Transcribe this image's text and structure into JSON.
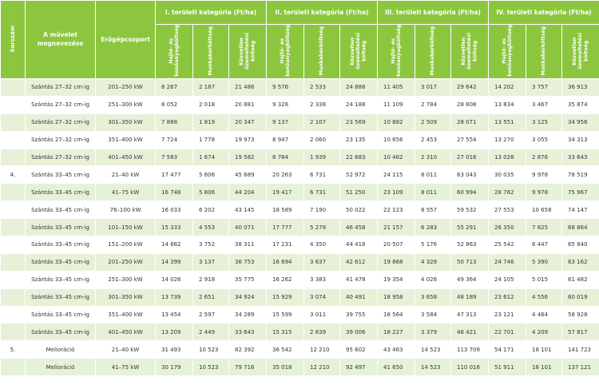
{
  "header": {
    "sorszam": "Sorszám",
    "muvelet": "A művelet megnevezése",
    "erogep": "Erőgépcsoport",
    "categories": [
      "I. területi kategória (Ft/ha)",
      "II. területi kategória (Ft/ha)",
      "III. területi kategória (Ft/ha)",
      "IV. területi kategória (Ft/ha)"
    ],
    "subcols": [
      "Hajtó- és\nkenőanyagköltség",
      "Munkabérköltség",
      "Közvetlen\nüzemeltetési\nköltség"
    ]
  },
  "rows": [
    {
      "sorszam": "",
      "muvelet": "Szántás 27–32 cm-ig",
      "erogep": "201–250 kW",
      "values": [
        "8 267",
        "2 187",
        "21 486",
        "9 576",
        "2 533",
        "24 888",
        "11 405",
        "3 017",
        "29 642",
        "14 202",
        "3 757",
        "36 913"
      ]
    },
    {
      "sorszam": "",
      "muvelet": "Szántás 27–32 cm-ig",
      "erogep": "251–300 kW",
      "values": [
        "8 052",
        "2 018",
        "20 881",
        "9 328",
        "2 338",
        "24 188",
        "11 109",
        "2 784",
        "28 808",
        "13 834",
        "3 467",
        "35 874"
      ]
    },
    {
      "sorszam": "",
      "muvelet": "Szántás 27–32 cm-ig",
      "erogep": "301–350 kW",
      "values": [
        "7 888",
        "1 819",
        "20 347",
        "9 137",
        "2 107",
        "23 569",
        "10 882",
        "2 509",
        "28 071",
        "13 551",
        "3 125",
        "34 956"
      ]
    },
    {
      "sorszam": "",
      "muvelet": "Szántás 27–32 cm-ig",
      "erogep": "351–400 kW",
      "values": [
        "7 724",
        "1 778",
        "19 973",
        "8 947",
        "2 060",
        "23 135",
        "10 656",
        "2 453",
        "27 554",
        "13 270",
        "3 055",
        "34 313"
      ]
    },
    {
      "sorszam": "",
      "muvelet": "Szántás 27–32 cm-ig",
      "erogep": "401–450 kW",
      "values": [
        "7 583",
        "1 674",
        "19 582",
        "8 784",
        "1 939",
        "22 683",
        "10 462",
        "2 310",
        "27 016",
        "13 028",
        "2 876",
        "33 643"
      ]
    },
    {
      "sorszam": "4.",
      "muvelet": "Szántás 33–45 cm-ig",
      "erogep": "21–40 kW",
      "values": [
        "17 477",
        "5 806",
        "45 689",
        "20 263",
        "6 731",
        "52 972",
        "24 115",
        "8 011",
        "63 043",
        "30 035",
        "9 978",
        "78 519"
      ]
    },
    {
      "sorszam": "",
      "muvelet": "Szántás 33–45 cm-ig",
      "erogep": "41–75 kW",
      "values": [
        "16 748",
        "5 806",
        "44 204",
        "19 417",
        "6 731",
        "51 250",
        "23 109",
        "8 011",
        "60 994",
        "28 782",
        "9 978",
        "75 967"
      ]
    },
    {
      "sorszam": "",
      "muvelet": "Szántás 33–45 cm-ig",
      "erogep": "76–100 kW",
      "values": [
        "16 033",
        "6 202",
        "43 145",
        "18 589",
        "7 190",
        "50 022",
        "22 123",
        "8 557",
        "59 532",
        "27 553",
        "10 658",
        "74 147"
      ]
    },
    {
      "sorszam": "",
      "muvelet": "Szántás 33–45 cm-ig",
      "erogep": "101–150 kW",
      "values": [
        "15 333",
        "4 553",
        "40 071",
        "17 777",
        "5 279",
        "46 458",
        "21 157",
        "6 283",
        "55 291",
        "26 350",
        "7 825",
        "68 864"
      ]
    },
    {
      "sorszam": "",
      "muvelet": "Szántás 33–45 cm-ig",
      "erogep": "151–200 kW",
      "values": [
        "14 862",
        "3 752",
        "38 311",
        "17 231",
        "4 350",
        "44 418",
        "20 507",
        "5 176",
        "52 863",
        "25 542",
        "6 447",
        "65 840"
      ]
    },
    {
      "sorszam": "",
      "muvelet": "Szántás 33–45 cm-ig",
      "erogep": "201–250 kW",
      "values": [
        "14 399",
        "3 137",
        "36 753",
        "16 694",
        "3 637",
        "42 612",
        "19 868",
        "4 328",
        "50 713",
        "24 746",
        "5 390",
        "63 162"
      ]
    },
    {
      "sorszam": "",
      "muvelet": "Szántás 33–45 cm-ig",
      "erogep": "251–300 kW",
      "values": [
        "14 026",
        "2 918",
        "35 775",
        "16 262",
        "3 383",
        "41 478",
        "19 354",
        "4 026",
        "49 364",
        "24 105",
        "5 015",
        "61 482"
      ]
    },
    {
      "sorszam": "",
      "muvelet": "Szántás 33–45 cm-ig",
      "erogep": "301–350 kW",
      "values": [
        "13 739",
        "2 651",
        "34 924",
        "15 929",
        "3 074",
        "40 491",
        "18 958",
        "3 658",
        "48 189",
        "23 612",
        "4 556",
        "60 019"
      ]
    },
    {
      "sorszam": "",
      "muvelet": "Szántás 33–45 cm-ig",
      "erogep": "351–400 kW",
      "values": [
        "13 454",
        "2 597",
        "34 289",
        "15 599",
        "3 011",
        "39 755",
        "18 564",
        "3 584",
        "47 313",
        "23 121",
        "4 464",
        "58 928"
      ]
    },
    {
      "sorszam": "",
      "muvelet": "Szántás 33–45 cm-ig",
      "erogep": "401–450 kW",
      "values": [
        "13 209",
        "2 449",
        "33 643",
        "15 315",
        "2 839",
        "39 006",
        "18 227",
        "3 379",
        "46 421",
        "22 701",
        "4 209",
        "57 817"
      ]
    },
    {
      "sorszam": "5.",
      "muvelet": "Melioráció",
      "erogep": "21–40 kW",
      "values": [
        "31 493",
        "10 523",
        "82 392",
        "36 542",
        "12 210",
        "95 602",
        "43 463",
        "14 523",
        "113 709",
        "54 171",
        "18 101",
        "141 723"
      ]
    },
    {
      "sorszam": "",
      "muvelet": "Melioráció",
      "erogep": "41–75 kW",
      "values": [
        "30 179",
        "10 523",
        "79 716",
        "35 018",
        "12 210",
        "92 497",
        "41 650",
        "14 523",
        "110 016",
        "51 911",
        "18 101",
        "137 121"
      ]
    }
  ]
}
